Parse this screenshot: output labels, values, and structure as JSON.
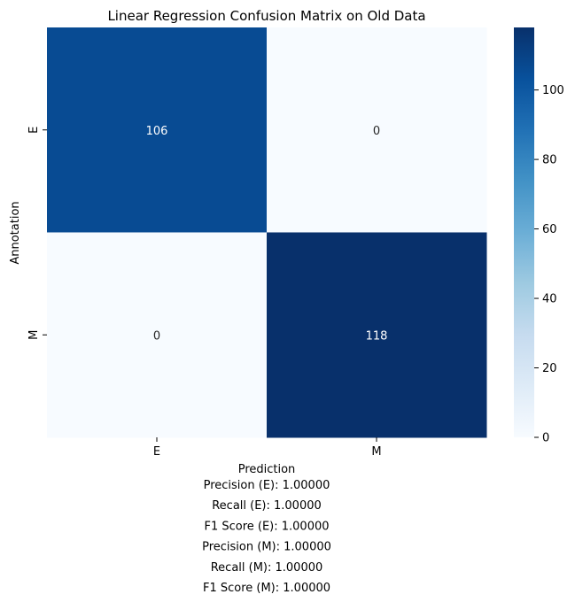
{
  "chart_data": {
    "type": "heatmap",
    "title": "Linear Regression Confusion Matrix on Old Data",
    "xlabel": "Prediction",
    "ylabel": "Annotation",
    "x_categories": [
      "E",
      "M"
    ],
    "y_categories": [
      "E",
      "M"
    ],
    "values": [
      [
        106,
        0
      ],
      [
        0,
        118
      ]
    ],
    "colormap": "Blues",
    "color_low": "#f7fbff",
    "color_high": "#08306b",
    "colorbar_range": [
      0,
      118
    ],
    "colorbar_ticks": [
      0,
      20,
      40,
      60,
      80,
      100
    ],
    "grid": false,
    "metrics": [
      "Precision (E): 1.00000",
      "Recall (E): 1.00000",
      "F1 Score (E): 1.00000",
      "Precision (M): 1.00000",
      "Recall (M): 1.00000",
      "F1 Score (M): 1.00000"
    ]
  }
}
